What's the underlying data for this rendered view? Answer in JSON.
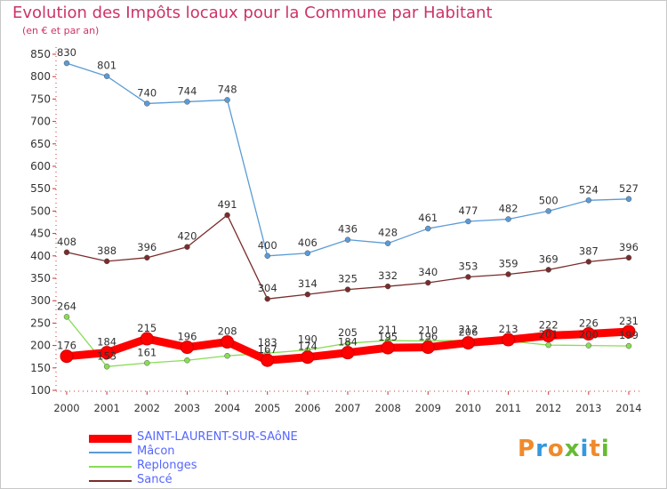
{
  "header": {
    "title": "Evolution des Impôts locaux pour la Commune par Habitant",
    "subtitle": "(en € et par an)"
  },
  "brand": {
    "text": "Proxiti",
    "colors": [
      "#f08a2a",
      "#3399dd",
      "#f08a2a",
      "#66bb33",
      "#3399dd",
      "#f08a2a",
      "#66bb33"
    ]
  },
  "chart_data": {
    "type": "line",
    "x": [
      "2000",
      "2001",
      "2002",
      "2003",
      "2004",
      "2005",
      "2006",
      "2007",
      "2008",
      "2009",
      "2010",
      "2011",
      "2012",
      "2013",
      "2014"
    ],
    "ylim": [
      100,
      850
    ],
    "yticks": [
      "100",
      "150",
      "200",
      "250",
      "300",
      "350",
      "400",
      "450",
      "500",
      "550",
      "600",
      "650",
      "700",
      "750",
      "800",
      "850"
    ],
    "grid": false,
    "legend_position": "bottom-left",
    "series": [
      {
        "name": "SAINT-LAURENT-SUR-SAôNE",
        "color": "#ff0000",
        "emphasis": true,
        "values": [
          176,
          184,
          215,
          196,
          208,
          167,
          174,
          184,
          195,
          196,
          206,
          213,
          222,
          226,
          231
        ],
        "labels": [
          "176",
          "184",
          "215",
          "196",
          "208",
          "167",
          "174",
          "184",
          "195",
          "196",
          "206",
          "213",
          "222",
          "226",
          "231"
        ]
      },
      {
        "name": "Mâcon",
        "color": "#5b9bd5",
        "values": [
          830,
          801,
          740,
          744,
          748,
          400,
          406,
          436,
          428,
          461,
          477,
          482,
          500,
          524,
          527
        ],
        "labels": [
          "830",
          "801",
          "740",
          "744",
          "748",
          "400",
          "406",
          "436",
          "428",
          "461",
          "477",
          "482",
          "500",
          "524",
          "527"
        ]
      },
      {
        "name": "Replonges",
        "color": "#88dd55",
        "values": [
          264,
          153,
          161,
          167,
          177,
          183,
          190,
          205,
          211,
          210,
          212,
          210,
          201,
          200,
          199
        ],
        "labels": [
          "264",
          "153",
          "161",
          "",
          "",
          "183",
          "190",
          "205",
          "211",
          "210",
          "212",
          "",
          "201",
          "200",
          "199"
        ]
      },
      {
        "name": "Sancé",
        "color": "#7a2c2c",
        "values": [
          408,
          388,
          396,
          420,
          491,
          304,
          314,
          325,
          332,
          340,
          353,
          359,
          369,
          387,
          396
        ],
        "labels": [
          "408",
          "388",
          "396",
          "420",
          "491",
          "304",
          "314",
          "325",
          "332",
          "340",
          "353",
          "359",
          "369",
          "387",
          "396"
        ]
      }
    ]
  }
}
